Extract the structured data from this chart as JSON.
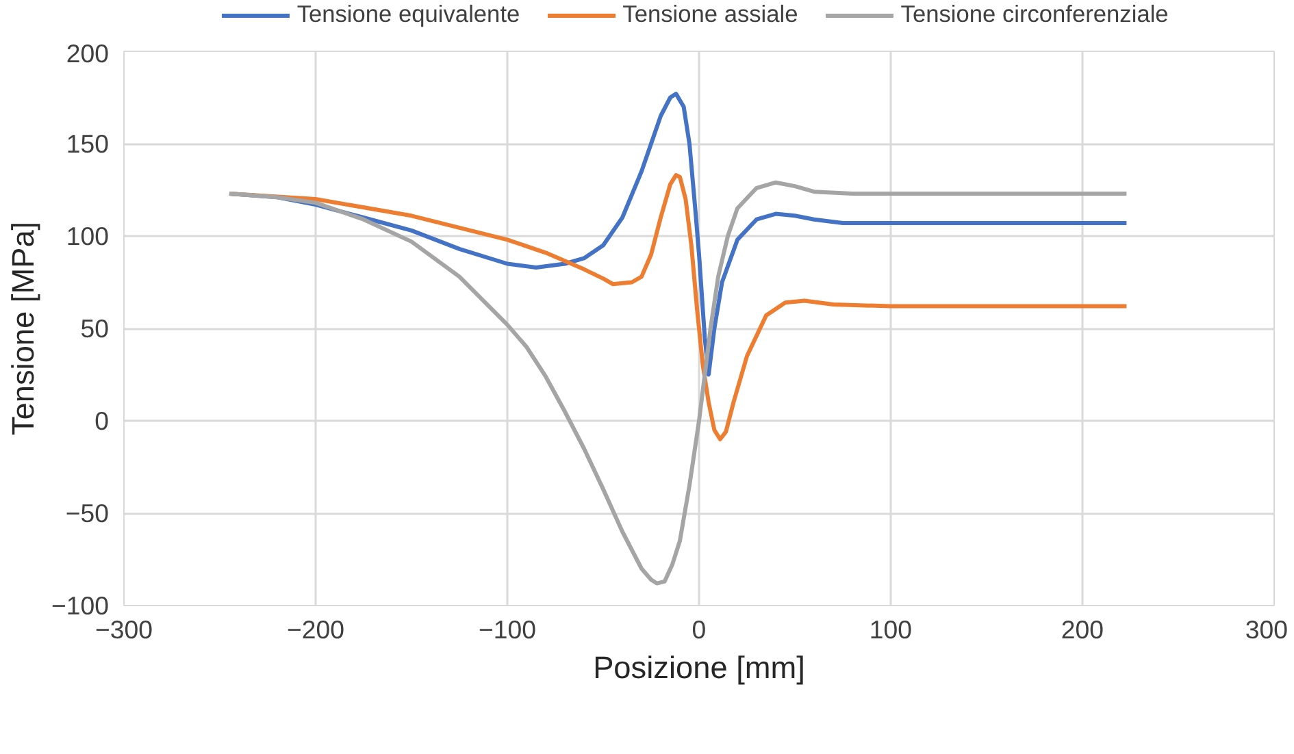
{
  "chart_data": {
    "type": "line",
    "xlabel": "Posizione [mm]",
    "ylabel": "Tensione [MPa]",
    "xlim": [
      -300,
      300
    ],
    "xticks": [
      -300,
      -200,
      -100,
      0,
      100,
      200,
      300
    ],
    "ylim": [
      -100,
      200
    ],
    "yticks": [
      -100,
      -50,
      0,
      50,
      100,
      150,
      200
    ],
    "grid": true,
    "legend": "top",
    "marker": "none",
    "line_style": "solid",
    "series": [
      {
        "name": "Tensione equivalente",
        "color": "#4472c4",
        "x": [
          -245,
          -220,
          -200,
          -175,
          -150,
          -125,
          -100,
          -85,
          -70,
          -60,
          -50,
          -40,
          -30,
          -25,
          -20,
          -15,
          -12,
          -8,
          -5,
          -2,
          0,
          3,
          5,
          8,
          12,
          20,
          30,
          40,
          50,
          60,
          75,
          100,
          150,
          223
        ],
        "values": [
          123,
          121,
          117,
          110,
          103,
          93,
          85,
          83,
          85,
          88,
          95,
          110,
          135,
          150,
          165,
          175,
          177,
          170,
          150,
          115,
          90,
          45,
          25,
          50,
          75,
          98,
          109,
          112,
          111,
          109,
          107,
          107,
          107,
          107
        ]
      },
      {
        "name": "Tensione assiale",
        "color": "#ed7d31",
        "x": [
          -245,
          -200,
          -150,
          -100,
          -80,
          -60,
          -50,
          -45,
          -35,
          -30,
          -25,
          -20,
          -15,
          -12,
          -10,
          -7,
          -4,
          -1,
          2,
          5,
          8,
          11,
          14,
          18,
          25,
          35,
          45,
          55,
          70,
          100,
          150,
          223
        ],
        "values": [
          123,
          120,
          111,
          98,
          91,
          82,
          77,
          74,
          75,
          78,
          90,
          110,
          128,
          133,
          132,
          120,
          95,
          60,
          30,
          10,
          -5,
          -10,
          -6,
          10,
          35,
          57,
          64,
          65,
          63,
          62,
          62,
          62
        ]
      },
      {
        "name": "Tensione circonferenziale",
        "color": "#a5a5a5",
        "x": [
          -245,
          -220,
          -200,
          -175,
          -150,
          -125,
          -100,
          -90,
          -80,
          -70,
          -60,
          -50,
          -40,
          -30,
          -25,
          -22,
          -18,
          -14,
          -10,
          -5,
          0,
          3,
          6,
          10,
          15,
          20,
          30,
          40,
          50,
          60,
          80,
          150,
          223
        ],
        "values": [
          123,
          121,
          118,
          109,
          97,
          78,
          52,
          40,
          24,
          5,
          -15,
          -37,
          -60,
          -80,
          -86,
          -88,
          -87,
          -78,
          -65,
          -35,
          0,
          25,
          50,
          78,
          100,
          115,
          126,
          129,
          127,
          124,
          123,
          123,
          123
        ]
      }
    ]
  }
}
